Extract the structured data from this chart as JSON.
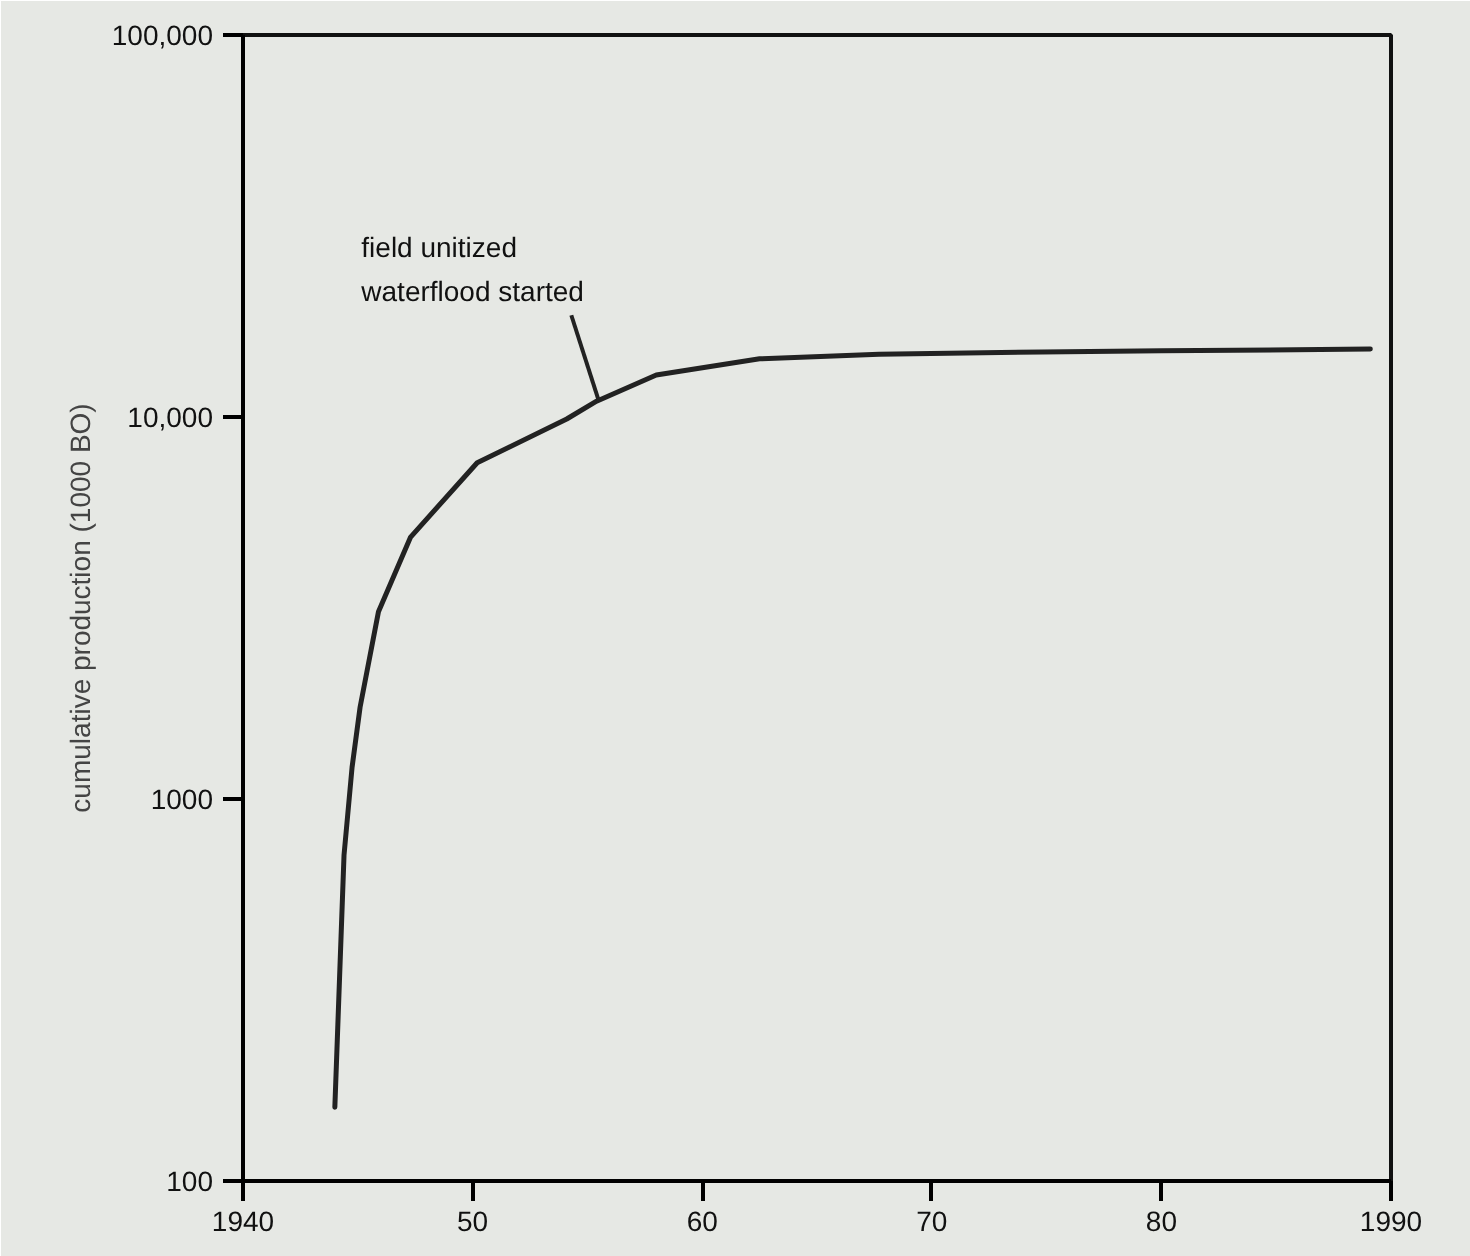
{
  "chart_data": {
    "type": "line",
    "ylabel": "cumulative production (1000 BO)",
    "x": [
      1944.0,
      1944.4,
      1944.75,
      1945.1,
      1945.9,
      1947.3,
      1950.2,
      1954.1,
      1955.4,
      1958.0,
      1962.5,
      1967.7,
      1974.8,
      1980.0,
      1989.1
    ],
    "series": [
      {
        "color": "#222222",
        "values": [
          156,
          713,
          1210,
          1740,
          3090,
          4850,
          7590,
          9880,
          11000,
          12880,
          14200,
          14600,
          14800,
          14900,
          15060
        ]
      }
    ],
    "log": "y",
    "grid": false,
    "marker": "none",
    "line_style": "solid",
    "xlim": [
      1940,
      1990
    ],
    "ylim": [
      100,
      100000
    ],
    "xticks": [
      1940,
      {
        "value": 1950,
        "label": "50"
      },
      {
        "value": 1960,
        "label": "60"
      },
      {
        "value": 1970,
        "label": "70"
      },
      {
        "value": 1980,
        "label": "80"
      },
      1990
    ],
    "yticks": [
      100,
      1000,
      {
        "value": 10000,
        "label": "10,000"
      },
      {
        "value": 100000,
        "label": "100,000"
      }
    ],
    "annotations": [
      {
        "text": "field unitized\nwaterflood started",
        "x": 1955.5,
        "y": 11000
      }
    ]
  }
}
